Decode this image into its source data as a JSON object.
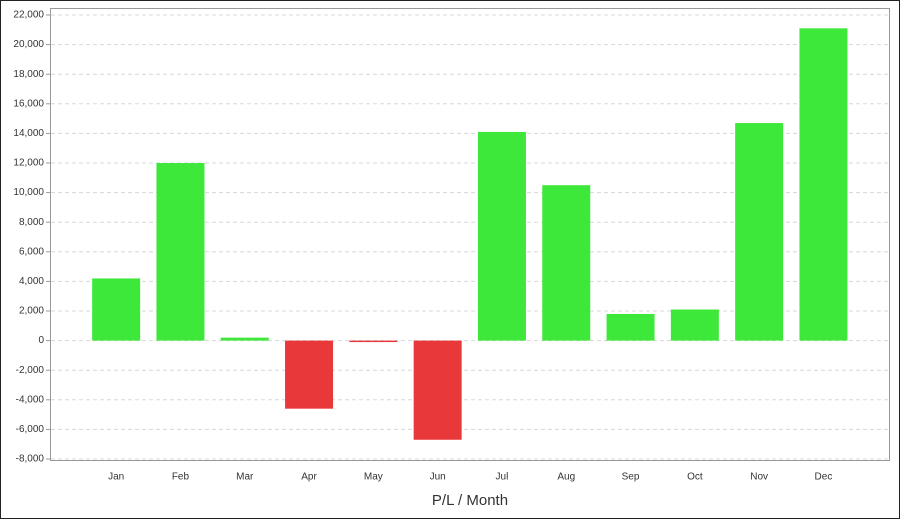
{
  "chart_data": {
    "type": "bar",
    "x_label": "P/L / Month",
    "categories": [
      "Jan",
      "Feb",
      "Mar",
      "Apr",
      "May",
      "Jun",
      "Jul",
      "Aug",
      "Sep",
      "Oct",
      "Nov",
      "Dec"
    ],
    "values": [
      4200,
      12000,
      200,
      -4600,
      -100,
      -6700,
      14100,
      10500,
      1800,
      2100,
      14700,
      21100
    ],
    "colors": [
      "#3ee83a",
      "#3ee83a",
      "#3ee83a",
      "#e8383a",
      "#e8383a",
      "#e8383a",
      "#3ee83a",
      "#3ee83a",
      "#3ee83a",
      "#3ee83a",
      "#3ee83a",
      "#3ee83a"
    ],
    "ylim": [
      -8000,
      22000
    ],
    "yticks": [
      {
        "value": -8000,
        "label": "-8,000"
      },
      {
        "value": -6000,
        "label": "-6,000"
      },
      {
        "value": -4000,
        "label": "-4,000"
      },
      {
        "value": -2000,
        "label": "-2,000"
      },
      0,
      {
        "value": 2000,
        "label": "2,000"
      },
      {
        "value": 4000,
        "label": "4,000"
      },
      {
        "value": 6000,
        "label": "6,000"
      },
      {
        "value": 8000,
        "label": "8,000"
      },
      {
        "value": 10000,
        "label": "10,000"
      },
      {
        "value": 12000,
        "label": "12,000"
      },
      {
        "value": 14000,
        "label": "14,000"
      },
      {
        "value": 16000,
        "label": "16,000"
      },
      {
        "value": 18000,
        "label": "18,000"
      },
      {
        "value": 20000,
        "label": "20,000"
      },
      {
        "value": 22000,
        "label": "22,000"
      }
    ],
    "grid": true
  }
}
